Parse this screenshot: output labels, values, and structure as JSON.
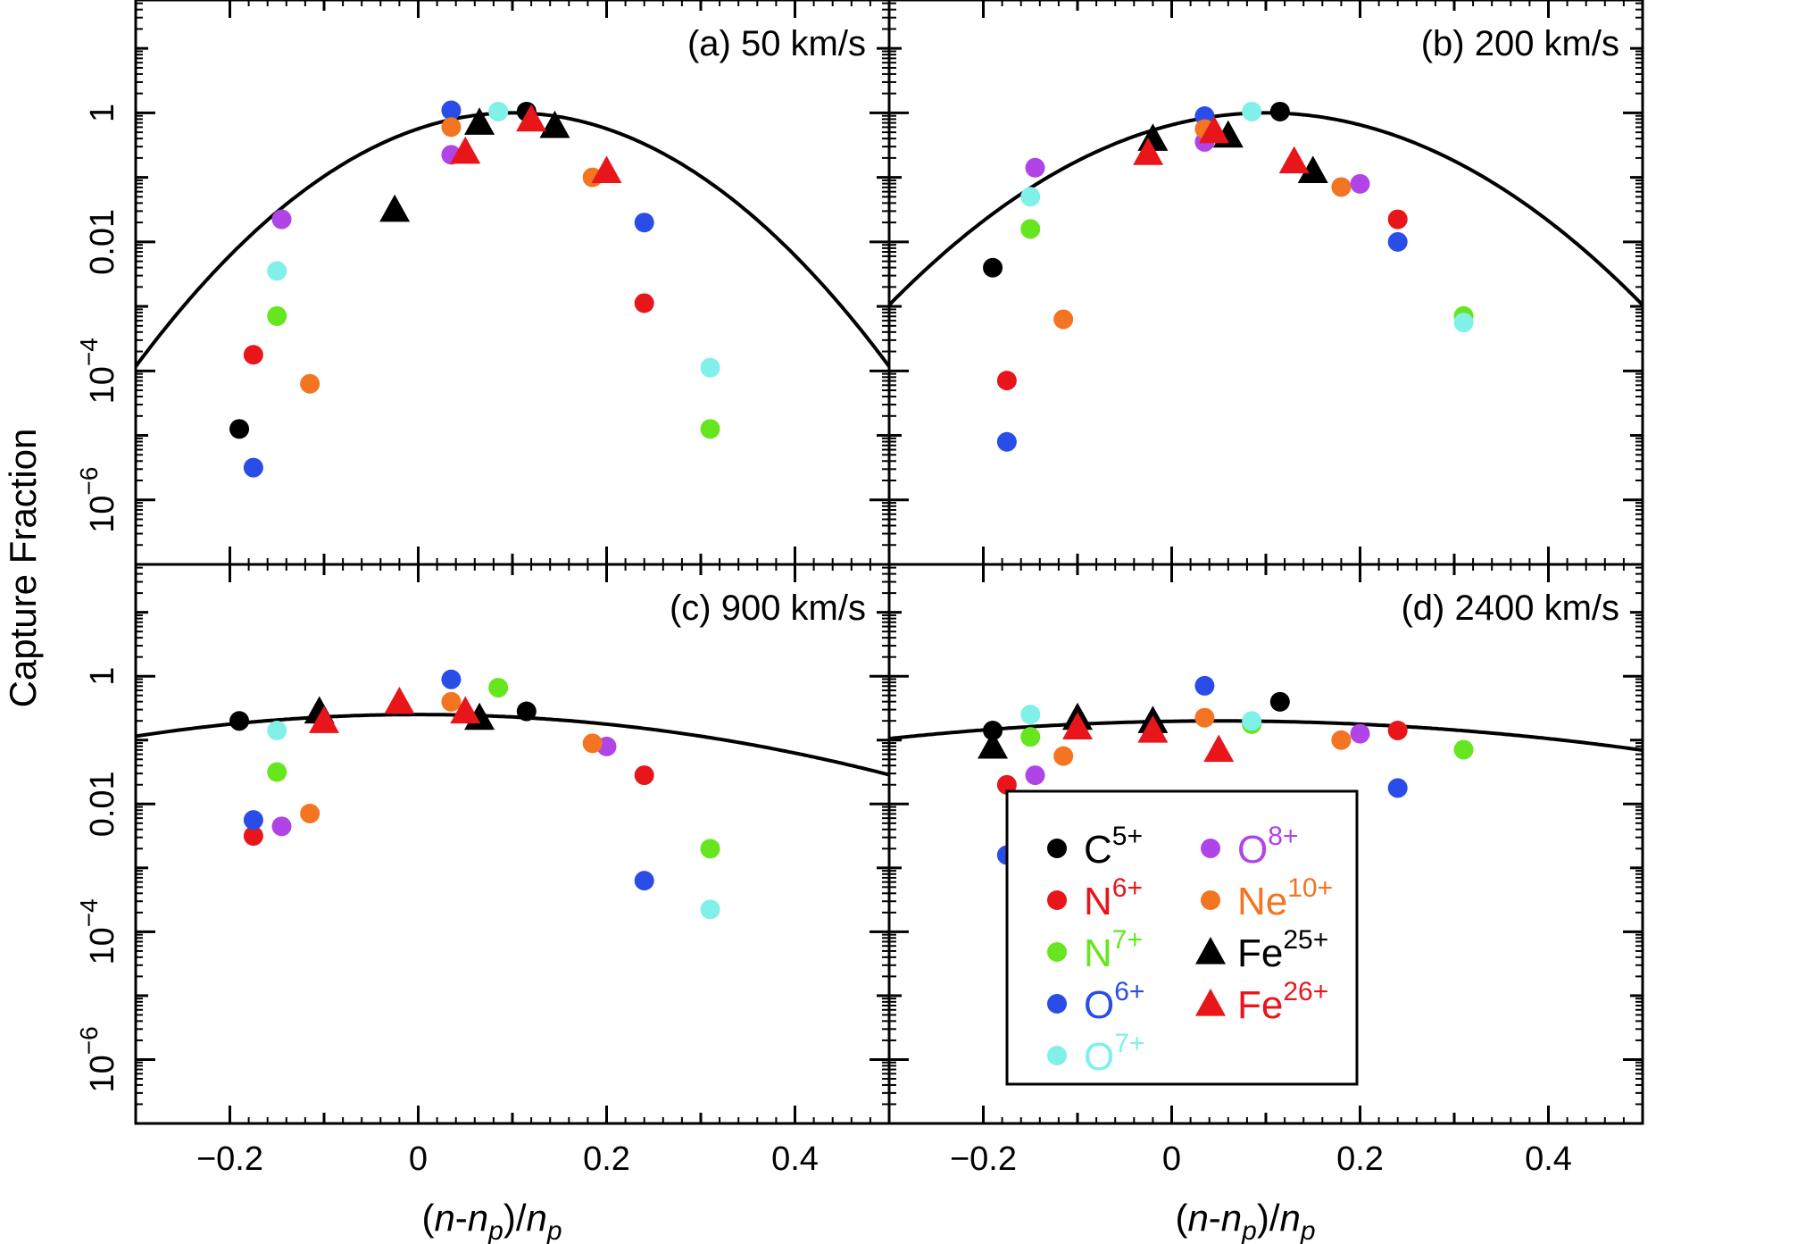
{
  "chart_data": {
    "type": "scatter",
    "ylabel": "Capture Fraction",
    "xlabel": "(n-np)/np",
    "xlabel_parts": {
      "open": "(",
      "n": "n",
      "minus": "-",
      "np_n": "n",
      "np_sub": "p",
      "close_div": ")/",
      "den_n": "n",
      "den_sub": "p"
    },
    "xlim": [
      -0.3,
      0.5
    ],
    "ylim_log10": [
      -7,
      1.75
    ],
    "x_ticks": [
      {
        "value": -0.2,
        "label": "−0.2"
      },
      {
        "value": 0,
        "label": "0"
      },
      {
        "value": 0.2,
        "label": "0.2"
      },
      {
        "value": 0.4,
        "label": "0.4"
      }
    ],
    "y_ticks": [
      {
        "log": 0,
        "label": "1",
        "sup": ""
      },
      {
        "log": -2,
        "label": "0.01",
        "sup": ""
      },
      {
        "log": -4,
        "label": "10",
        "sup": "−4"
      },
      {
        "log": -6,
        "label": "10",
        "sup": "−6"
      }
    ],
    "series_styles": {
      "C5+": {
        "color": "#000000",
        "marker": "circle"
      },
      "N6+": {
        "color": "#e8161a",
        "marker": "circle"
      },
      "N7+": {
        "color": "#66e61e",
        "marker": "circle"
      },
      "O6+": {
        "color": "#2a4de8",
        "marker": "circle"
      },
      "O7+": {
        "color": "#80f0e8",
        "marker": "circle"
      },
      "O8+": {
        "color": "#b044e6",
        "marker": "circle"
      },
      "Ne10+": {
        "color": "#f37421",
        "marker": "circle"
      },
      "Fe25+": {
        "color": "#000000",
        "marker": "triangle"
      },
      "Fe26+": {
        "color": "#e8161a",
        "marker": "triangle"
      }
    },
    "legend": [
      {
        "series": "C5+",
        "base": "C",
        "sup": "5+",
        "color": "#000000",
        "text_color": "#000000",
        "marker": "circle"
      },
      {
        "series": "N6+",
        "base": "N",
        "sup": "6+",
        "color": "#e8161a",
        "text_color": "#e8161a",
        "marker": "circle"
      },
      {
        "series": "N7+",
        "base": "N",
        "sup": "7+",
        "color": "#66e61e",
        "text_color": "#66e61e",
        "marker": "circle"
      },
      {
        "series": "O6+",
        "base": "O",
        "sup": "6+",
        "color": "#2a4de8",
        "text_color": "#2a4de8",
        "marker": "circle"
      },
      {
        "series": "O7+",
        "base": "O",
        "sup": "7+",
        "color": "#80f0e8",
        "text_color": "#80f0e8",
        "marker": "circle"
      },
      {
        "series": "O8+",
        "base": "O",
        "sup": "8+",
        "color": "#b044e6",
        "text_color": "#b044e6",
        "marker": "circle"
      },
      {
        "series": "Ne10+",
        "base": "Ne",
        "sup": "10+",
        "color": "#f37421",
        "text_color": "#f37421",
        "marker": "circle"
      },
      {
        "series": "Fe25+",
        "base": "Fe",
        "sup": "25+",
        "color": "#000000",
        "text_color": "#000000",
        "marker": "triangle"
      },
      {
        "series": "Fe26+",
        "base": "Fe",
        "sup": "26+",
        "color": "#e8161a",
        "text_color": "#e8161a",
        "marker": "triangle"
      }
    ],
    "panels": [
      {
        "id": "a",
        "label": "(a) 50 km/s",
        "curve": {
          "mu": 0.1,
          "sigma": 0.094,
          "peak_log10": 0
        },
        "points": [
          {
            "series": "C5+",
            "x": -0.19,
            "log10y": -4.9
          },
          {
            "series": "C5+",
            "x": 0.115,
            "log10y": 0.02
          },
          {
            "series": "N6+",
            "x": -0.175,
            "log10y": -3.75
          },
          {
            "series": "N6+",
            "x": 0.24,
            "log10y": -2.95
          },
          {
            "series": "N7+",
            "x": -0.15,
            "log10y": -3.15
          },
          {
            "series": "N7+",
            "x": 0.31,
            "log10y": -4.9
          },
          {
            "series": "O6+",
            "x": -0.175,
            "log10y": -5.5
          },
          {
            "series": "O6+",
            "x": 0.035,
            "log10y": 0.04
          },
          {
            "series": "O6+",
            "x": 0.24,
            "log10y": -1.7
          },
          {
            "series": "O7+",
            "x": -0.15,
            "log10y": -2.45
          },
          {
            "series": "O7+",
            "x": 0.085,
            "log10y": 0.02
          },
          {
            "series": "O7+",
            "x": 0.31,
            "log10y": -3.95
          },
          {
            "series": "O8+",
            "x": -0.145,
            "log10y": -1.65
          },
          {
            "series": "O8+",
            "x": 0.035,
            "log10y": -0.65
          },
          {
            "series": "Ne10+",
            "x": -0.115,
            "log10y": -4.2
          },
          {
            "series": "Ne10+",
            "x": 0.035,
            "log10y": -0.22
          },
          {
            "series": "Ne10+",
            "x": 0.185,
            "log10y": -1.0
          },
          {
            "series": "Fe25+",
            "x": -0.025,
            "log10y": -1.5
          },
          {
            "series": "Fe25+",
            "x": 0.065,
            "log10y": -0.15
          },
          {
            "series": "Fe25+",
            "x": 0.145,
            "log10y": -0.2
          },
          {
            "series": "Fe26+",
            "x": 0.05,
            "log10y": -0.6
          },
          {
            "series": "Fe26+",
            "x": 0.12,
            "log10y": -0.1
          },
          {
            "series": "Fe26+",
            "x": 0.2,
            "log10y": -0.9
          }
        ]
      },
      {
        "id": "b",
        "label": "(b) 200 km/s",
        "curve": {
          "mu": 0.1,
          "sigma": 0.108,
          "peak_log10": 0
        },
        "points": [
          {
            "series": "C5+",
            "x": -0.19,
            "log10y": -2.4
          },
          {
            "series": "C5+",
            "x": 0.115,
            "log10y": 0.02
          },
          {
            "series": "N6+",
            "x": -0.175,
            "log10y": -4.15
          },
          {
            "series": "N6+",
            "x": 0.24,
            "log10y": -1.65
          },
          {
            "series": "N7+",
            "x": -0.15,
            "log10y": -1.8
          },
          {
            "series": "N7+",
            "x": 0.31,
            "log10y": -3.15
          },
          {
            "series": "O6+",
            "x": -0.175,
            "log10y": -5.1
          },
          {
            "series": "O6+",
            "x": 0.035,
            "log10y": -0.05
          },
          {
            "series": "O6+",
            "x": 0.24,
            "log10y": -2.0
          },
          {
            "series": "O7+",
            "x": -0.15,
            "log10y": -1.3
          },
          {
            "series": "O7+",
            "x": 0.085,
            "log10y": 0.02
          },
          {
            "series": "O7+",
            "x": 0.31,
            "log10y": -3.25
          },
          {
            "series": "O8+",
            "x": -0.145,
            "log10y": -0.85
          },
          {
            "series": "O8+",
            "x": 0.035,
            "log10y": -0.45
          },
          {
            "series": "O8+",
            "x": 0.2,
            "log10y": -1.1
          },
          {
            "series": "Ne10+",
            "x": -0.115,
            "log10y": -3.2
          },
          {
            "series": "Ne10+",
            "x": 0.035,
            "log10y": -0.25
          },
          {
            "series": "Ne10+",
            "x": 0.18,
            "log10y": -1.15
          },
          {
            "series": "Fe25+",
            "x": -0.02,
            "log10y": -0.4
          },
          {
            "series": "Fe25+",
            "x": 0.06,
            "log10y": -0.35
          },
          {
            "series": "Fe25+",
            "x": 0.15,
            "log10y": -0.9
          },
          {
            "series": "Fe26+",
            "x": -0.025,
            "log10y": -0.62
          },
          {
            "series": "Fe26+",
            "x": 0.045,
            "log10y": -0.28
          },
          {
            "series": "Fe26+",
            "x": 0.13,
            "log10y": -0.75
          }
        ]
      },
      {
        "id": "c",
        "label": "(c) 900 km/s",
        "curve": {
          "mu": 0.0,
          "sigma": 0.24,
          "peak_log10": -0.6
        },
        "points": [
          {
            "series": "C5+",
            "x": -0.19,
            "log10y": -0.7
          },
          {
            "series": "C5+",
            "x": 0.115,
            "log10y": -0.55
          },
          {
            "series": "N6+",
            "x": -0.175,
            "log10y": -2.5
          },
          {
            "series": "N6+",
            "x": 0.24,
            "log10y": -1.55
          },
          {
            "series": "N7+",
            "x": -0.15,
            "log10y": -1.5
          },
          {
            "series": "N7+",
            "x": 0.085,
            "log10y": -0.18
          },
          {
            "series": "N7+",
            "x": 0.31,
            "log10y": -2.7
          },
          {
            "series": "O6+",
            "x": -0.175,
            "log10y": -2.25
          },
          {
            "series": "O6+",
            "x": 0.035,
            "log10y": -0.05
          },
          {
            "series": "O6+",
            "x": 0.24,
            "log10y": -3.2
          },
          {
            "series": "O7+",
            "x": -0.15,
            "log10y": -0.85
          },
          {
            "series": "O7+",
            "x": 0.31,
            "log10y": -3.65
          },
          {
            "series": "O8+",
            "x": -0.145,
            "log10y": -2.35
          },
          {
            "series": "O8+",
            "x": 0.2,
            "log10y": -1.1
          },
          {
            "series": "Ne10+",
            "x": -0.115,
            "log10y": -2.15
          },
          {
            "series": "Ne10+",
            "x": 0.035,
            "log10y": -0.4
          },
          {
            "series": "Ne10+",
            "x": 0.185,
            "log10y": -1.05
          },
          {
            "series": "Fe25+",
            "x": -0.105,
            "log10y": -0.55
          },
          {
            "series": "Fe25+",
            "x": 0.065,
            "log10y": -0.65
          },
          {
            "series": "Fe26+",
            "x": -0.1,
            "log10y": -0.7
          },
          {
            "series": "Fe26+",
            "x": -0.02,
            "log10y": -0.4
          },
          {
            "series": "Fe26+",
            "x": 0.05,
            "log10y": -0.55
          }
        ]
      },
      {
        "id": "d",
        "label": "(d) 2400 km/s",
        "curve": {
          "mu": 0.05,
          "sigma": 0.31,
          "peak_log10": -0.7
        },
        "points": [
          {
            "series": "C5+",
            "x": -0.19,
            "log10y": -0.85
          },
          {
            "series": "C5+",
            "x": 0.115,
            "log10y": -0.4
          },
          {
            "series": "N6+",
            "x": -0.175,
            "log10y": -1.7
          },
          {
            "series": "N6+",
            "x": 0.24,
            "log10y": -0.85
          },
          {
            "series": "N7+",
            "x": -0.15,
            "log10y": -0.95
          },
          {
            "series": "N7+",
            "x": 0.085,
            "log10y": -0.75
          },
          {
            "series": "N7+",
            "x": 0.31,
            "log10y": -1.15
          },
          {
            "series": "O6+",
            "x": -0.175,
            "log10y": -2.8
          },
          {
            "series": "O6+",
            "x": 0.035,
            "log10y": -0.15
          },
          {
            "series": "O6+",
            "x": 0.24,
            "log10y": -1.75
          },
          {
            "series": "O7+",
            "x": -0.15,
            "log10y": -0.6
          },
          {
            "series": "O7+",
            "x": 0.085,
            "log10y": -0.7
          },
          {
            "series": "O8+",
            "x": -0.145,
            "log10y": -1.55
          },
          {
            "series": "O8+",
            "x": 0.2,
            "log10y": -0.9
          },
          {
            "series": "Ne10+",
            "x": -0.115,
            "log10y": -1.25
          },
          {
            "series": "Ne10+",
            "x": 0.035,
            "log10y": -0.65
          },
          {
            "series": "Ne10+",
            "x": 0.18,
            "log10y": -1.0
          },
          {
            "series": "Fe25+",
            "x": -0.19,
            "log10y": -1.1
          },
          {
            "series": "Fe25+",
            "x": -0.1,
            "log10y": -0.65
          },
          {
            "series": "Fe25+",
            "x": -0.02,
            "log10y": -0.7
          },
          {
            "series": "Fe26+",
            "x": -0.1,
            "log10y": -0.8
          },
          {
            "series": "Fe26+",
            "x": -0.02,
            "log10y": -0.85
          },
          {
            "series": "Fe26+",
            "x": 0.05,
            "log10y": -1.15
          }
        ]
      }
    ]
  }
}
